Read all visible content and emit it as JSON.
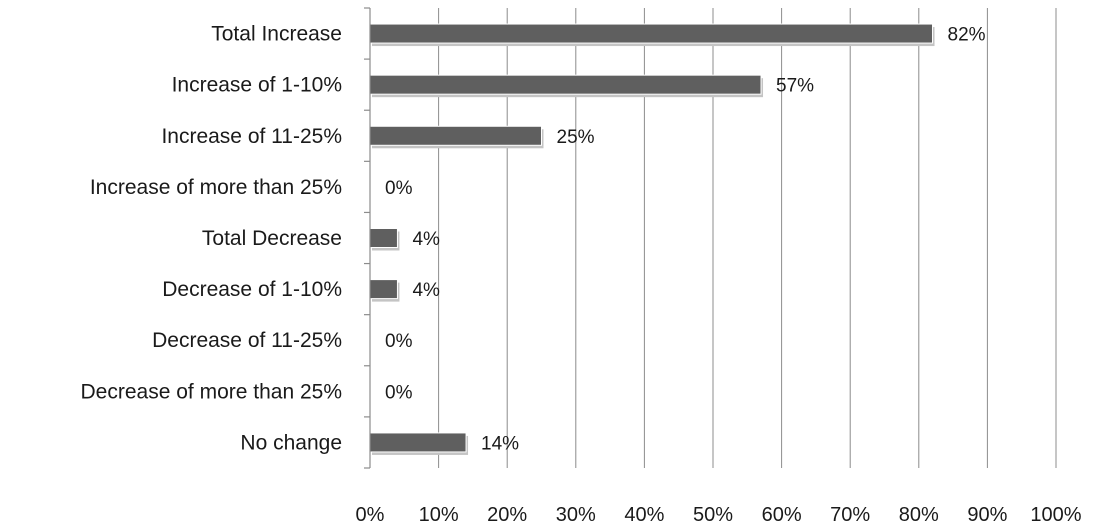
{
  "chart_data": {
    "type": "bar",
    "orientation": "horizontal",
    "categories": [
      "Total Increase",
      "Increase of 1-10%",
      "Increase of 11-25%",
      "Increase of more than 25%",
      "Total Decrease",
      "Decrease of 1-10%",
      "Decrease of 11-25%",
      "Decrease of more than 25%",
      "No change"
    ],
    "values": [
      82,
      57,
      25,
      0,
      4,
      4,
      0,
      0,
      14
    ],
    "value_labels": [
      "82%",
      "57%",
      "25%",
      "0%",
      "4%",
      "4%",
      "0%",
      "0%",
      "14%"
    ],
    "xlim": [
      0,
      100
    ],
    "x_ticks": [
      0,
      10,
      20,
      30,
      40,
      50,
      60,
      70,
      80,
      90,
      100
    ],
    "x_tick_labels": [
      "0%",
      "10%",
      "20%",
      "30%",
      "40%",
      "50%",
      "60%",
      "70%",
      "80%",
      "90%",
      "100%"
    ],
    "title": "",
    "xlabel": "",
    "ylabel": "",
    "grid": "vertical",
    "legend": "none",
    "colors": {
      "bar": "#5f5f5f",
      "shadow": "#c4c4c4",
      "grid": "#8c8c8c",
      "axis": "#8c8c8c"
    }
  }
}
